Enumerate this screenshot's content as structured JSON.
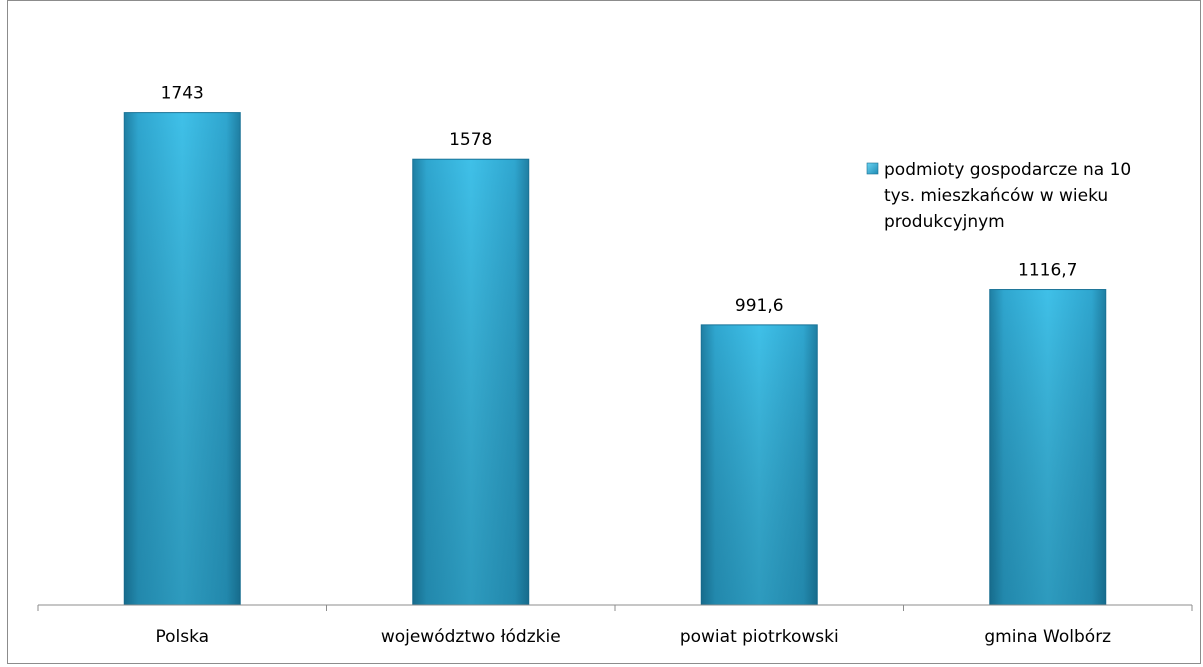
{
  "chart_data": {
    "type": "bar",
    "categories": [
      "Polska",
      "województwo łódzkie",
      "powiat piotrkowski",
      "gmina Wolbórz"
    ],
    "series": [
      {
        "name": "podmioty gospodarcze na 10 tys. mieszkańców w wieku produkcyjnym",
        "values": [
          1743,
          1578,
          991.6,
          1116.7
        ]
      }
    ],
    "data_labels": [
      "1743",
      "1578",
      "991,6",
      "1116,7"
    ],
    "legend_lines": [
      "podmioty gospodarcze na 10",
      "tys. mieszkańców w wieku",
      "produkcyjnym"
    ],
    "ylim": [
      0,
      1800
    ],
    "grid": false,
    "legend_position": "right",
    "bar_color": "#3bb8e0"
  }
}
